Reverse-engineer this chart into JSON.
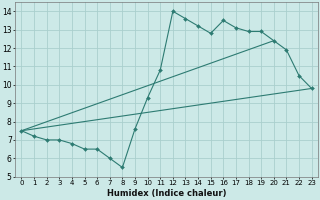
{
  "title": "",
  "xlabel": "Humidex (Indice chaleur)",
  "xlim": [
    -0.5,
    23.5
  ],
  "ylim": [
    5,
    14.5
  ],
  "xticks": [
    0,
    1,
    2,
    3,
    4,
    5,
    6,
    7,
    8,
    9,
    10,
    11,
    12,
    13,
    14,
    15,
    16,
    17,
    18,
    19,
    20,
    21,
    22,
    23
  ],
  "yticks": [
    5,
    6,
    7,
    8,
    9,
    10,
    11,
    12,
    13,
    14
  ],
  "bg_color": "#cce9e7",
  "grid_color": "#aacfcd",
  "line_color": "#2d7b72",
  "main_x": [
    0,
    1,
    2,
    3,
    4,
    5,
    6,
    7,
    8,
    9,
    10,
    11,
    12,
    13,
    14,
    15,
    16,
    17,
    18,
    19,
    20,
    21,
    22,
    23
  ],
  "main_y": [
    7.5,
    7.2,
    7.0,
    7.0,
    6.8,
    6.5,
    6.5,
    6.0,
    5.5,
    7.6,
    9.3,
    10.8,
    14.0,
    13.6,
    13.2,
    12.8,
    13.5,
    13.1,
    12.9,
    12.9,
    12.4,
    11.9,
    10.5,
    9.8
  ],
  "line1_x": [
    0,
    23
  ],
  "line1_y": [
    7.5,
    9.8
  ],
  "line2_x": [
    0,
    20
  ],
  "line2_y": [
    7.5,
    12.4
  ],
  "figsize": [
    3.2,
    2.0
  ],
  "dpi": 100
}
